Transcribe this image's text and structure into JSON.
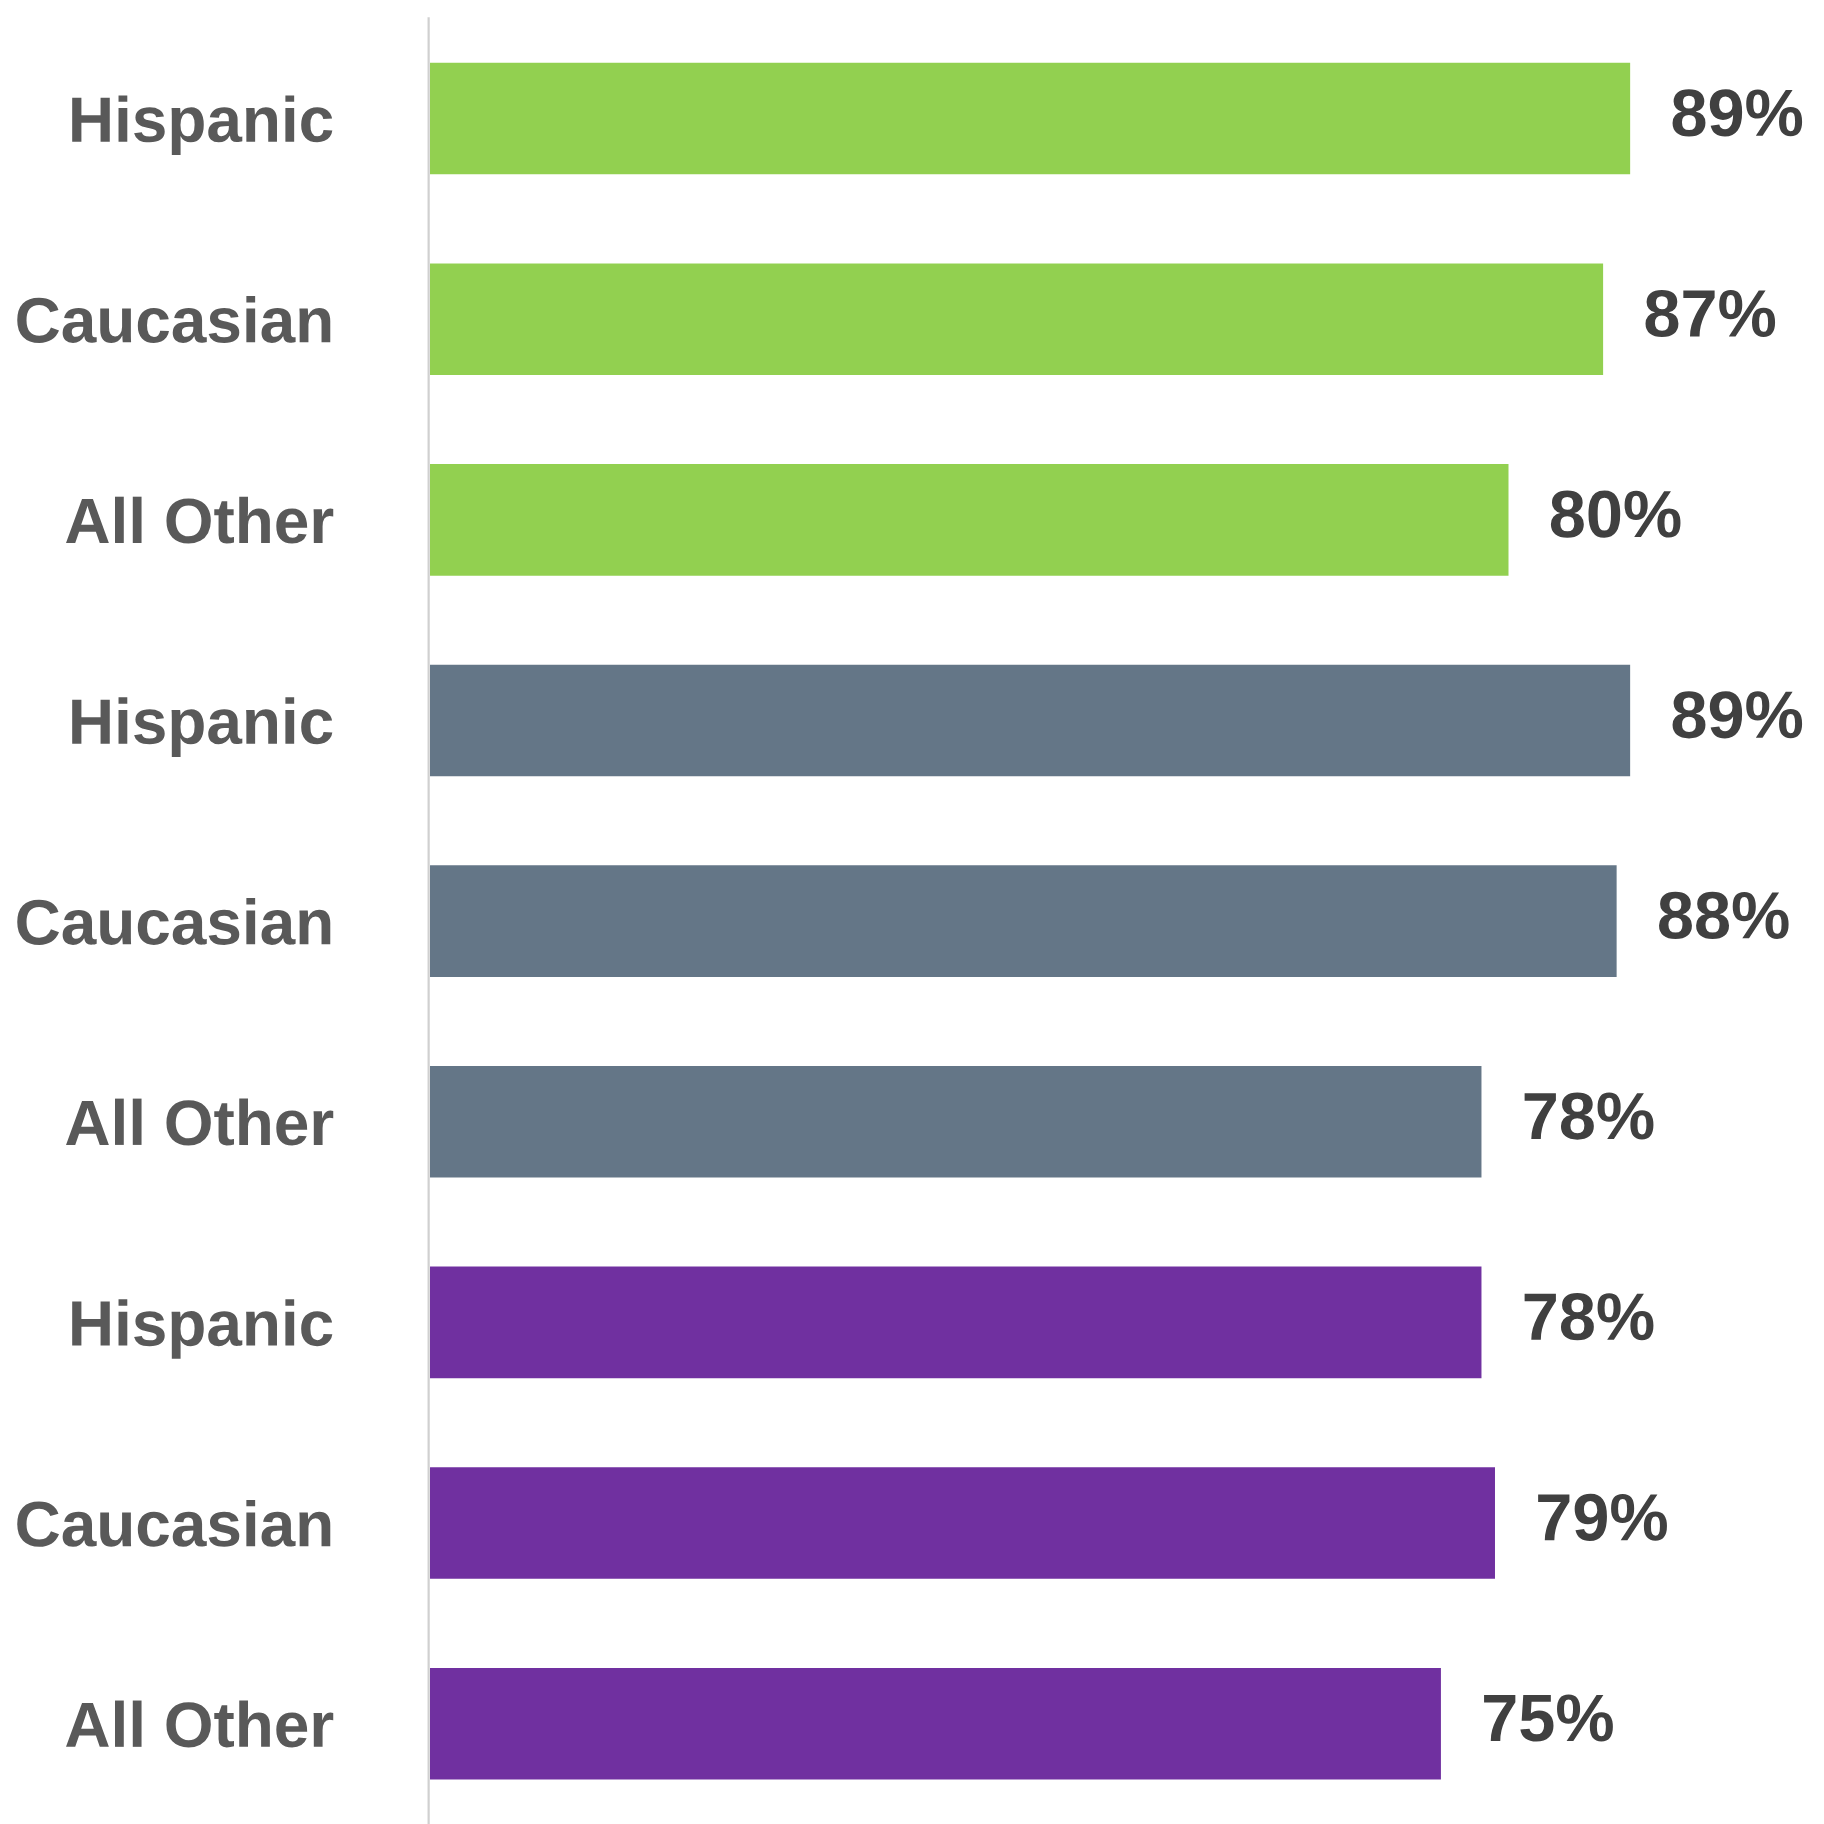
{
  "chart_data": {
    "type": "bar",
    "orientation": "horizontal",
    "categories": [
      "Hispanic",
      "Caucasian",
      "All Other",
      "Hispanic",
      "Caucasian",
      "All Other",
      "Hispanic",
      "Caucasian",
      "All Other"
    ],
    "values": [
      89,
      87,
      80,
      89,
      88,
      78,
      78,
      79,
      75
    ],
    "colors": [
      "#92d050",
      "#92d050",
      "#92d050",
      "#647687",
      "#647687",
      "#647687",
      "#7030a0",
      "#7030a0",
      "#7030a0"
    ],
    "value_labels": [
      "89%",
      "87%",
      "80%",
      "89%",
      "88%",
      "78%",
      "78%",
      "79%",
      "75%"
    ],
    "tick_labels": "y",
    "grid": false,
    "legend": false
  }
}
